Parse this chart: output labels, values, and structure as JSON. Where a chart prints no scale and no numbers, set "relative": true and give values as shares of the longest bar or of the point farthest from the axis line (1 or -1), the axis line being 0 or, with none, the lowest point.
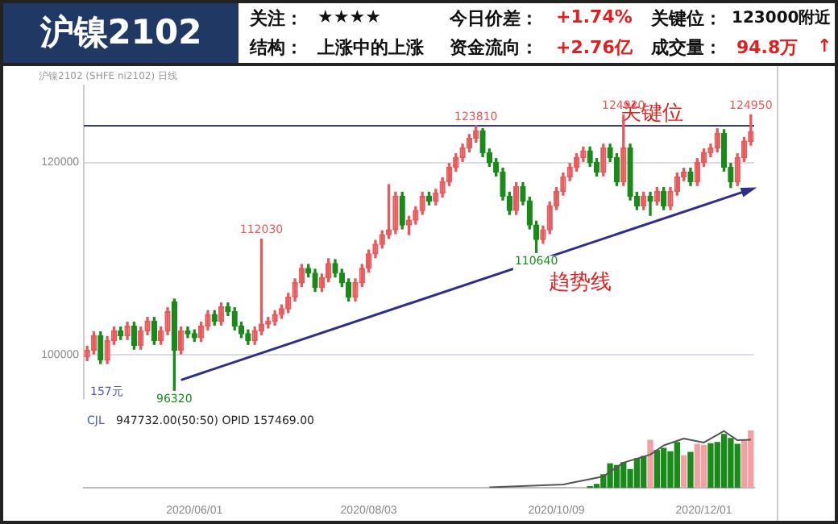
{
  "chart_data": [
    {
      "type": "candlestick",
      "title": "沪镍2102",
      "annotations": [
        "关注：",
        "★★★★",
        "今日价差：",
        "+1.74%",
        "关键位：",
        "123000附近",
        "结构：",
        "上涨中的上涨",
        "资金流向：",
        "+2.76亿",
        "成交量：",
        "94.8万",
        "↑",
        "沪镍2102 (SHFE ni2102) 日线",
        "157元",
        {
          "text": "96320",
          "y": 96320
        },
        {
          "text": "112030",
          "y": 112030
        },
        {
          "text": "123810",
          "y": 123810
        },
        {
          "text": "110640",
          "y": 110640
        },
        {
          "text": "124920",
          "y": 124920
        },
        {
          "text": "124950",
          "y": 124950
        }
      ],
      "categories": [
        null,
        null,
        null,
        null,
        null,
        null,
        null,
        null,
        null,
        null,
        null,
        null,
        null,
        null,
        null,
        null,
        "2020/06/01",
        null,
        null,
        null,
        null,
        null,
        null,
        null,
        null,
        null,
        null,
        null,
        null,
        null,
        null,
        null,
        null,
        null,
        null,
        null,
        null,
        null,
        null,
        null,
        null,
        null,
        "2020/08/03",
        null,
        null,
        null,
        null,
        null,
        null,
        null,
        null,
        null,
        null,
        null,
        null,
        null,
        null,
        null,
        null,
        null,
        null,
        null,
        null,
        null,
        null,
        null,
        null,
        null,
        null,
        null,
        "2020/10/09",
        null,
        null,
        null,
        null,
        null,
        null,
        null,
        null,
        null,
        null,
        null,
        null,
        null,
        null,
        null,
        null,
        null,
        null,
        null,
        null,
        null,
        "2020/12/01",
        null,
        null,
        null,
        null,
        null,
        null,
        null
      ],
      "ohlc": [
        [
          99800,
          100900,
          99400,
          100500
        ],
        [
          100500,
          102400,
          100100,
          102000
        ],
        [
          102000,
          102400,
          99100,
          99500
        ],
        [
          99500,
          101900,
          99100,
          101500
        ],
        [
          101500,
          102900,
          101100,
          102500
        ],
        [
          102500,
          102900,
          101600,
          102000
        ],
        [
          102000,
          103400,
          101600,
          103000
        ],
        [
          103000,
          103400,
          100600,
          101000
        ],
        [
          101000,
          102900,
          100600,
          102500
        ],
        [
          102500,
          103900,
          102100,
          103500
        ],
        [
          103500,
          103900,
          101100,
          101500
        ],
        [
          101500,
          102900,
          101100,
          102500
        ],
        [
          102500,
          104900,
          102100,
          104500
        ],
        [
          105500,
          105800,
          96320,
          100500
        ],
        [
          100500,
          102900,
          100100,
          102500
        ],
        [
          102500,
          102900,
          101800,
          102200
        ],
        [
          102200,
          102600,
          101400,
          101800
        ],
        [
          101800,
          103400,
          101400,
          103000
        ],
        [
          103000,
          104600,
          102600,
          104200
        ],
        [
          104200,
          104600,
          103100,
          103500
        ],
        [
          103500,
          105400,
          103100,
          105000
        ],
        [
          105000,
          105400,
          104100,
          104500
        ],
        [
          104500,
          104900,
          102600,
          103000
        ],
        [
          103000,
          103400,
          101800,
          102200
        ],
        [
          102200,
          102600,
          101100,
          101500
        ],
        [
          101500,
          102900,
          101100,
          102500
        ],
        [
          102500,
          112030,
          102100,
          103200
        ],
        [
          103200,
          103900,
          102800,
          103500
        ],
        [
          103500,
          104600,
          103100,
          104200
        ],
        [
          104200,
          105200,
          103800,
          104800
        ],
        [
          104800,
          106400,
          104400,
          106000
        ],
        [
          106000,
          107900,
          105600,
          107500
        ],
        [
          107500,
          109400,
          107100,
          109000
        ],
        [
          109000,
          109400,
          108100,
          108500
        ],
        [
          108500,
          108900,
          106600,
          107000
        ],
        [
          107000,
          108400,
          106600,
          108000
        ],
        [
          108000,
          110000,
          107600,
          109500
        ],
        [
          109500,
          109900,
          108100,
          108500
        ],
        [
          108500,
          108900,
          107100,
          107500
        ],
        [
          107500,
          107900,
          105600,
          106000
        ],
        [
          106000,
          107900,
          105600,
          107500
        ],
        [
          107500,
          109400,
          107100,
          109000
        ],
        [
          109000,
          110900,
          108600,
          110500
        ],
        [
          110500,
          111900,
          110100,
          111500
        ],
        [
          111500,
          112900,
          111100,
          112500
        ],
        [
          112500,
          117700,
          112100,
          113000
        ],
        [
          113000,
          116900,
          112600,
          116500
        ],
        [
          116500,
          116900,
          113100,
          113500
        ],
        [
          113500,
          114400,
          112500,
          114000
        ],
        [
          114000,
          115400,
          113600,
          115000
        ],
        [
          115000,
          116900,
          114600,
          116500
        ],
        [
          116500,
          116900,
          115600,
          116000
        ],
        [
          116000,
          117200,
          115600,
          116800
        ],
        [
          116800,
          118400,
          116400,
          118000
        ],
        [
          118000,
          119900,
          117600,
          119500
        ],
        [
          119500,
          120900,
          119100,
          120500
        ],
        [
          120500,
          121900,
          120100,
          121500
        ],
        [
          121500,
          122900,
          121100,
          122500
        ],
        [
          122500,
          123810,
          122100,
          123300
        ],
        [
          123300,
          123500,
          120600,
          121000
        ],
        [
          121000,
          121400,
          119600,
          120000
        ],
        [
          120000,
          120400,
          118600,
          119000
        ],
        [
          119000,
          119400,
          116100,
          116500
        ],
        [
          116500,
          116900,
          114600,
          115000
        ],
        [
          115000,
          117900,
          114600,
          117500
        ],
        [
          117500,
          117900,
          115600,
          116000
        ],
        [
          116000,
          116400,
          113100,
          113500
        ],
        [
          113500,
          113900,
          110640,
          112000
        ],
        [
          112000,
          113400,
          111600,
          113000
        ],
        [
          113000,
          115900,
          112600,
          115500
        ],
        [
          115500,
          117400,
          115100,
          117000
        ],
        [
          117000,
          118900,
          116600,
          118500
        ],
        [
          118500,
          119900,
          118100,
          119500
        ],
        [
          119500,
          120900,
          119100,
          120500
        ],
        [
          120500,
          121600,
          120100,
          121200
        ],
        [
          121200,
          121600,
          119600,
          120000
        ],
        [
          120000,
          120400,
          118600,
          119000
        ],
        [
          119000,
          121900,
          118600,
          121500
        ],
        [
          121500,
          121900,
          120100,
          120500
        ],
        [
          120500,
          120900,
          117600,
          118000
        ],
        [
          118000,
          124920,
          117600,
          121500
        ],
        [
          121500,
          121900,
          116100,
          116500
        ],
        [
          116500,
          116900,
          115100,
          115500
        ],
        [
          115500,
          116900,
          115100,
          116500
        ],
        [
          116500,
          116900,
          114500,
          116000
        ],
        [
          116000,
          117400,
          115600,
          117000
        ],
        [
          117000,
          117400,
          115100,
          115500
        ],
        [
          115500,
          117400,
          115100,
          117000
        ],
        [
          117000,
          118900,
          116600,
          118500
        ],
        [
          118500,
          119400,
          118100,
          119000
        ],
        [
          119000,
          119400,
          117600,
          118000
        ],
        [
          118000,
          120400,
          117600,
          120000
        ],
        [
          120000,
          121400,
          119600,
          121000
        ],
        [
          121000,
          121900,
          120600,
          121500
        ],
        [
          121500,
          123500,
          121100,
          123000
        ],
        [
          123000,
          123400,
          119100,
          119500
        ],
        [
          119500,
          119900,
          117400,
          118000
        ],
        [
          118000,
          120900,
          117600,
          120500
        ],
        [
          120500,
          122600,
          120100,
          122200
        ],
        [
          122200,
          124950,
          121800,
          123200
        ]
      ],
      "colors": [
        "#e8595c",
        "#e8595c",
        "#1a8a1a",
        "#e8595c",
        "#e8595c",
        "#1a8a1a",
        "#e8595c",
        "#1a8a1a",
        "#e8595c",
        "#e8595c",
        "#1a8a1a",
        "#e8595c",
        "#e8595c",
        "#1a8a1a",
        "#e8595c",
        "#1a8a1a",
        "#1a8a1a",
        "#e8595c",
        "#e8595c",
        "#1a8a1a",
        "#e8595c",
        "#1a8a1a",
        "#1a8a1a",
        "#1a8a1a",
        "#1a8a1a",
        "#e8595c",
        "#e8595c",
        "#e8595c",
        "#e8595c",
        "#e8595c",
        "#e8595c",
        "#e8595c",
        "#e8595c",
        "#1a8a1a",
        "#1a8a1a",
        "#e8595c",
        "#e8595c",
        "#1a8a1a",
        "#1a8a1a",
        "#1a8a1a",
        "#e8595c",
        "#e8595c",
        "#e8595c",
        "#e8595c",
        "#e8595c",
        "#e8595c",
        "#e8595c",
        "#1a8a1a",
        "#e8595c",
        "#e8595c",
        "#e8595c",
        "#1a8a1a",
        "#e8595c",
        "#e8595c",
        "#e8595c",
        "#e8595c",
        "#e8595c",
        "#e8595c",
        "#e8595c",
        "#1a8a1a",
        "#1a8a1a",
        "#1a8a1a",
        "#1a8a1a",
        "#1a8a1a",
        "#e8595c",
        "#1a8a1a",
        "#1a8a1a",
        "#1a8a1a",
        "#e8595c",
        "#e8595c",
        "#e8595c",
        "#e8595c",
        "#e8595c",
        "#e8595c",
        "#e8595c",
        "#1a8a1a",
        "#1a8a1a",
        "#e8595c",
        "#1a8a1a",
        "#1a8a1a",
        "#e8595c",
        "#1a8a1a",
        "#1a8a1a",
        "#e8595c",
        "#1a8a1a",
        "#e8595c",
        "#1a8a1a",
        "#e8595c",
        "#e8595c",
        "#e8595c",
        "#1a8a1a",
        "#e8595c",
        "#e8595c",
        "#e8595c",
        "#e8595c",
        "#1a8a1a",
        "#1a8a1a",
        "#e8595c",
        "#e8595c",
        "#e8595c"
      ],
      "series": [
        {
          "type": "line",
          "name": "趋势线",
          "color": "#2e2e8c",
          "values": [
            null,
            null,
            null,
            null,
            null,
            null,
            null,
            null,
            null,
            null,
            null,
            null,
            null,
            null,
            97400,
            null,
            null,
            null,
            null,
            null,
            null,
            null,
            null,
            null,
            null,
            null,
            null,
            null,
            null,
            null,
            null,
            null,
            null,
            null,
            null,
            null,
            null,
            null,
            null,
            null,
            null,
            null,
            null,
            null,
            null,
            null,
            null,
            null,
            null,
            null,
            null,
            null,
            null,
            null,
            null,
            null,
            null,
            null,
            null,
            null,
            null,
            null,
            null,
            null,
            null,
            null,
            null,
            null,
            null,
            null,
            null,
            null,
            null,
            null,
            null,
            null,
            null,
            null,
            null,
            null,
            null,
            null,
            null,
            null,
            null,
            null,
            null,
            null,
            null,
            null,
            null,
            null,
            null,
            null,
            null,
            null,
            null,
            null,
            null,
            117200
          ]
        }
      ],
      "ref_lines": [
        {
          "axis": "y",
          "value": 123810,
          "label": "关键位",
          "color": "#3a3a8a"
        }
      ],
      "ylim": [
        95500,
        128000
      ],
      "yticks": [
        100000,
        120000
      ],
      "grid": "y",
      "tick_labels": "y"
    },
    {
      "type": "bar",
      "relative": true,
      "annotations": [
        "CJL",
        "947732.00(50:50) OPID 157469.00"
      ],
      "categories": [
        null,
        null,
        null,
        null,
        null,
        null,
        null,
        null,
        null,
        null,
        null,
        null,
        null,
        null,
        null,
        null,
        "2020/06/01",
        null,
        null,
        null,
        null,
        null,
        null,
        null,
        null,
        null,
        null,
        null,
        null,
        null,
        null,
        null,
        null,
        null,
        null,
        null,
        null,
        null,
        null,
        null,
        null,
        null,
        "2020/08/03",
        null,
        null,
        null,
        null,
        null,
        null,
        null,
        null,
        null,
        null,
        null,
        null,
        null,
        null,
        null,
        null,
        null,
        null,
        null,
        null,
        null,
        null,
        null,
        null,
        null,
        null,
        null,
        "2020/10/09",
        null,
        null,
        null,
        null,
        null,
        null,
        null,
        null,
        null,
        null,
        null,
        null,
        null,
        null,
        null,
        null,
        null,
        null,
        null,
        null,
        null,
        "2020/12/01",
        null,
        null,
        null,
        null,
        null,
        null,
        null
      ],
      "series": [
        {
          "type": "bar",
          "colors": [
            null,
            null,
            null,
            null,
            null,
            null,
            null,
            null,
            null,
            null,
            null,
            null,
            null,
            null,
            null,
            null,
            null,
            null,
            null,
            null,
            null,
            null,
            null,
            null,
            null,
            null,
            null,
            null,
            null,
            null,
            null,
            null,
            null,
            null,
            null,
            null,
            null,
            null,
            null,
            null,
            null,
            null,
            null,
            null,
            null,
            null,
            null,
            null,
            null,
            null,
            null,
            null,
            null,
            null,
            null,
            null,
            null,
            null,
            null,
            null,
            null,
            null,
            null,
            null,
            null,
            null,
            null,
            null,
            null,
            null,
            null,
            null,
            null,
            null,
            null,
            "#1a8a1a",
            "#1a8a1a",
            "#1a8a1a",
            "#1a8a1a",
            "#1a8a1a",
            "#1a8a1a",
            "#1a8a1a",
            "#1a8a1a",
            "#1a8a1a",
            "#f2a0a2",
            "#1a8a1a",
            "#1a8a1a",
            "#1a8a1a",
            "#1a8a1a",
            "#f2a0a2",
            "#1a8a1a",
            "#f2a0a2",
            "#f2a0a2",
            "#1a8a1a",
            "#1a8a1a",
            "#1a8a1a",
            "#1a8a1a",
            "#1a8a1a",
            "#f2a0a2",
            "#f2a0a2"
          ],
          "values": [
            null,
            null,
            null,
            null,
            null,
            null,
            null,
            null,
            null,
            null,
            null,
            null,
            null,
            null,
            null,
            null,
            null,
            null,
            null,
            null,
            null,
            null,
            null,
            null,
            null,
            null,
            null,
            null,
            null,
            null,
            null,
            null,
            null,
            null,
            null,
            null,
            null,
            null,
            null,
            null,
            null,
            null,
            null,
            null,
            null,
            null,
            null,
            null,
            null,
            null,
            null,
            null,
            null,
            null,
            null,
            null,
            null,
            null,
            null,
            null,
            null,
            null,
            null,
            null,
            null,
            null,
            null,
            null,
            null,
            null,
            null,
            null,
            null,
            null,
            null,
            0.02,
            0.06,
            0.23,
            0.42,
            0.39,
            0.44,
            0.32,
            0.51,
            0.55,
            0.83,
            0.65,
            0.69,
            0.63,
            0.79,
            0.56,
            0.62,
            0.76,
            0.74,
            0.77,
            0.79,
            0.93,
            0.86,
            0.76,
            0.83,
            1.0
          ]
        },
        {
          "type": "line",
          "color": "#555555",
          "values": [
            null,
            null,
            null,
            null,
            null,
            null,
            null,
            null,
            null,
            null,
            null,
            null,
            null,
            null,
            null,
            null,
            null,
            null,
            null,
            null,
            null,
            null,
            null,
            null,
            null,
            null,
            null,
            null,
            null,
            null,
            null,
            null,
            null,
            null,
            null,
            null,
            null,
            null,
            null,
            null,
            null,
            null,
            null,
            null,
            null,
            null,
            null,
            null,
            null,
            null,
            null,
            null,
            null,
            null,
            null,
            null,
            null,
            null,
            null,
            null,
            0.01,
            null,
            null,
            null,
            null,
            null,
            null,
            null,
            null,
            null,
            null,
            0.06,
            null,
            null,
            null,
            null,
            null,
            0.2,
            null,
            null,
            0.44,
            null,
            null,
            null,
            0.58,
            null,
            0.74,
            null,
            null,
            0.86,
            null,
            null,
            0.79,
            null,
            null,
            0.99,
            null,
            0.83,
            null,
            0.84
          ]
        }
      ],
      "tick_labels": "x"
    }
  ]
}
